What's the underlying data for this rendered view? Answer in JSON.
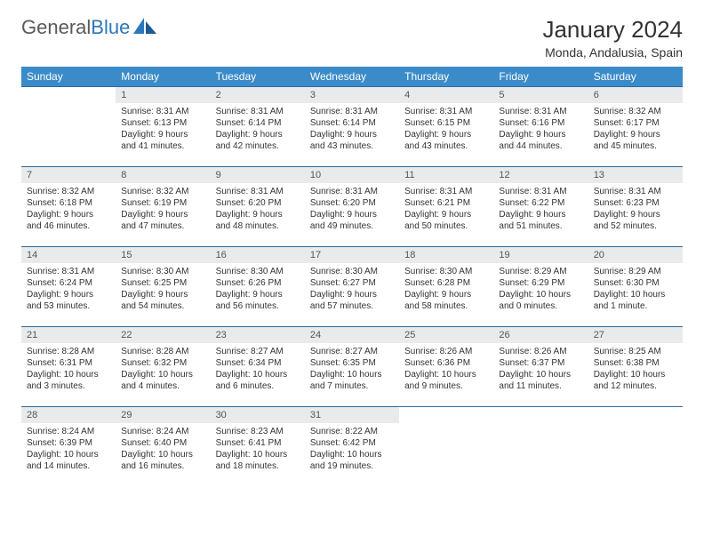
{
  "brand": {
    "part1": "General",
    "part2": "Blue"
  },
  "title": "January 2024",
  "location": "Monda, Andalusia, Spain",
  "colors": {
    "header_bg": "#3b8bc9",
    "header_text": "#ffffff",
    "row_border": "#2c6ca5",
    "daynum_bg": "#e9eaeb",
    "daynum_text": "#555555",
    "body_text": "#333333",
    "logo_gray": "#58595b",
    "logo_blue": "#2c77bb"
  },
  "weekdays": [
    "Sunday",
    "Monday",
    "Tuesday",
    "Wednesday",
    "Thursday",
    "Friday",
    "Saturday"
  ],
  "weeks": [
    [
      null,
      {
        "n": "1",
        "sr": "8:31 AM",
        "ss": "6:13 PM",
        "d": "9 hours and 41 minutes."
      },
      {
        "n": "2",
        "sr": "8:31 AM",
        "ss": "6:14 PM",
        "d": "9 hours and 42 minutes."
      },
      {
        "n": "3",
        "sr": "8:31 AM",
        "ss": "6:14 PM",
        "d": "9 hours and 43 minutes."
      },
      {
        "n": "4",
        "sr": "8:31 AM",
        "ss": "6:15 PM",
        "d": "9 hours and 43 minutes."
      },
      {
        "n": "5",
        "sr": "8:31 AM",
        "ss": "6:16 PM",
        "d": "9 hours and 44 minutes."
      },
      {
        "n": "6",
        "sr": "8:32 AM",
        "ss": "6:17 PM",
        "d": "9 hours and 45 minutes."
      }
    ],
    [
      {
        "n": "7",
        "sr": "8:32 AM",
        "ss": "6:18 PM",
        "d": "9 hours and 46 minutes."
      },
      {
        "n": "8",
        "sr": "8:32 AM",
        "ss": "6:19 PM",
        "d": "9 hours and 47 minutes."
      },
      {
        "n": "9",
        "sr": "8:31 AM",
        "ss": "6:20 PM",
        "d": "9 hours and 48 minutes."
      },
      {
        "n": "10",
        "sr": "8:31 AM",
        "ss": "6:20 PM",
        "d": "9 hours and 49 minutes."
      },
      {
        "n": "11",
        "sr": "8:31 AM",
        "ss": "6:21 PM",
        "d": "9 hours and 50 minutes."
      },
      {
        "n": "12",
        "sr": "8:31 AM",
        "ss": "6:22 PM",
        "d": "9 hours and 51 minutes."
      },
      {
        "n": "13",
        "sr": "8:31 AM",
        "ss": "6:23 PM",
        "d": "9 hours and 52 minutes."
      }
    ],
    [
      {
        "n": "14",
        "sr": "8:31 AM",
        "ss": "6:24 PM",
        "d": "9 hours and 53 minutes."
      },
      {
        "n": "15",
        "sr": "8:30 AM",
        "ss": "6:25 PM",
        "d": "9 hours and 54 minutes."
      },
      {
        "n": "16",
        "sr": "8:30 AM",
        "ss": "6:26 PM",
        "d": "9 hours and 56 minutes."
      },
      {
        "n": "17",
        "sr": "8:30 AM",
        "ss": "6:27 PM",
        "d": "9 hours and 57 minutes."
      },
      {
        "n": "18",
        "sr": "8:30 AM",
        "ss": "6:28 PM",
        "d": "9 hours and 58 minutes."
      },
      {
        "n": "19",
        "sr": "8:29 AM",
        "ss": "6:29 PM",
        "d": "10 hours and 0 minutes."
      },
      {
        "n": "20",
        "sr": "8:29 AM",
        "ss": "6:30 PM",
        "d": "10 hours and 1 minute."
      }
    ],
    [
      {
        "n": "21",
        "sr": "8:28 AM",
        "ss": "6:31 PM",
        "d": "10 hours and 3 minutes."
      },
      {
        "n": "22",
        "sr": "8:28 AM",
        "ss": "6:32 PM",
        "d": "10 hours and 4 minutes."
      },
      {
        "n": "23",
        "sr": "8:27 AM",
        "ss": "6:34 PM",
        "d": "10 hours and 6 minutes."
      },
      {
        "n": "24",
        "sr": "8:27 AM",
        "ss": "6:35 PM",
        "d": "10 hours and 7 minutes."
      },
      {
        "n": "25",
        "sr": "8:26 AM",
        "ss": "6:36 PM",
        "d": "10 hours and 9 minutes."
      },
      {
        "n": "26",
        "sr": "8:26 AM",
        "ss": "6:37 PM",
        "d": "10 hours and 11 minutes."
      },
      {
        "n": "27",
        "sr": "8:25 AM",
        "ss": "6:38 PM",
        "d": "10 hours and 12 minutes."
      }
    ],
    [
      {
        "n": "28",
        "sr": "8:24 AM",
        "ss": "6:39 PM",
        "d": "10 hours and 14 minutes."
      },
      {
        "n": "29",
        "sr": "8:24 AM",
        "ss": "6:40 PM",
        "d": "10 hours and 16 minutes."
      },
      {
        "n": "30",
        "sr": "8:23 AM",
        "ss": "6:41 PM",
        "d": "10 hours and 18 minutes."
      },
      {
        "n": "31",
        "sr": "8:22 AM",
        "ss": "6:42 PM",
        "d": "10 hours and 19 minutes."
      },
      null,
      null,
      null
    ]
  ]
}
